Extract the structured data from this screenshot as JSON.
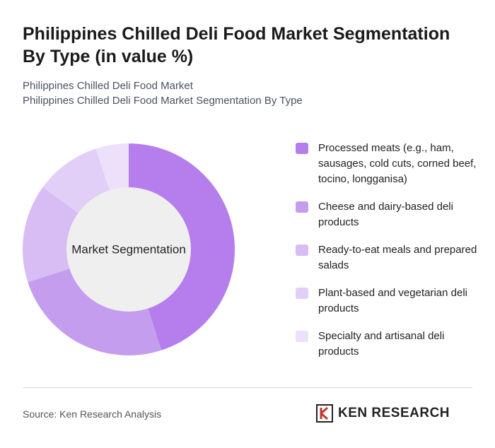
{
  "chart_data": {
    "type": "donut",
    "title": "Philippines Chilled Deli Food Market Segmentation By Type (in value %)",
    "subtitle": [
      "Philippines Chilled Deli Food Market",
      "Philippines Chilled Deli Food Market Segmentation By Type"
    ],
    "center_label": "Market Segmentation",
    "categories": [
      "Processed meats (e.g., ham, sausages, cold cuts, corned beef, tocino, longganisa)",
      "Cheese and dairy-based deli products",
      "Ready-to-eat meals and prepared salads",
      "Plant-based and vegetarian deli products",
      "Specialty and artisanal deli products"
    ],
    "values": [
      45,
      25,
      15,
      10,
      5
    ],
    "colors": [
      "#b57eec",
      "#c49def",
      "#d7bdf4",
      "#e2cff7",
      "#ece0fa"
    ]
  },
  "footer": {
    "source": "Source: Ken Research Analysis",
    "brand": "KEN RESEARCH"
  }
}
